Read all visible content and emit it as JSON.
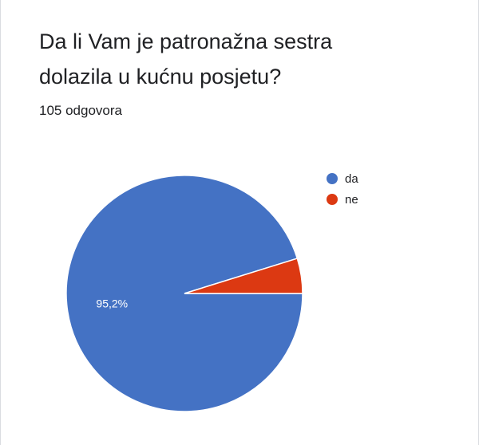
{
  "question": {
    "title_line1": "Da li Vam je patronažna sestra",
    "title_line2": "dolazila u kućnu posjetu?",
    "response_count": "105 odgovora"
  },
  "chart_data": {
    "type": "pie",
    "categories": [
      "da",
      "ne"
    ],
    "values": [
      95.2,
      4.8
    ],
    "value_unit": "%",
    "slice_labels": [
      "95,2%",
      ""
    ],
    "colors": [
      "#4472c4",
      "#dc3912"
    ],
    "legend_position": "right"
  }
}
